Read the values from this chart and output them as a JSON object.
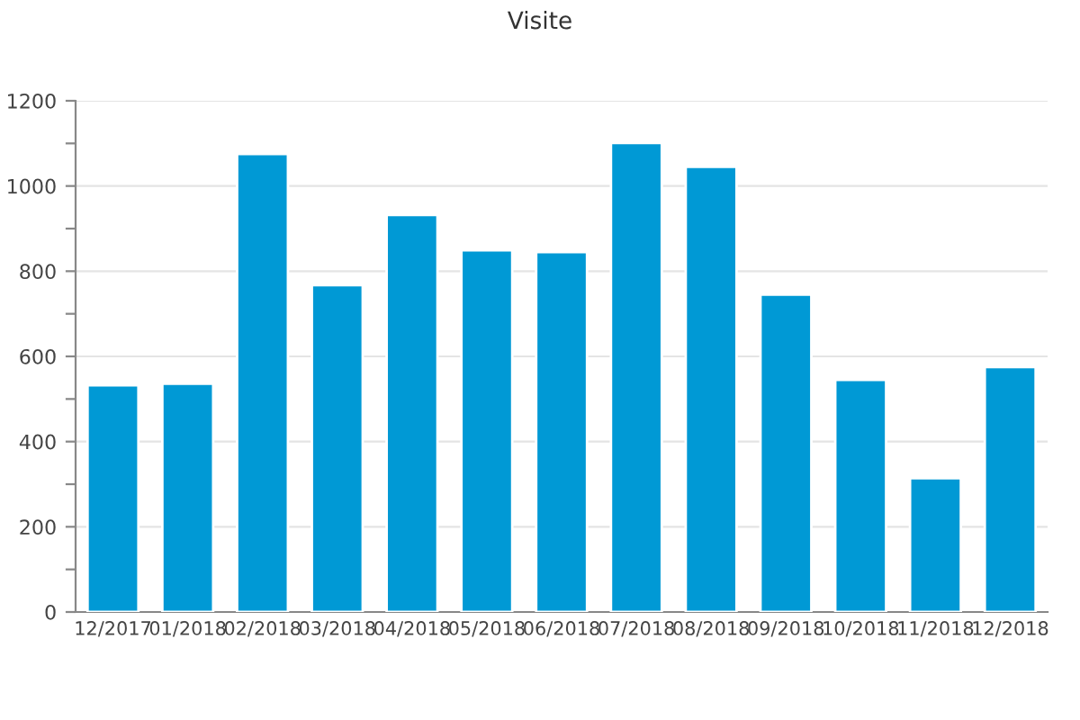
{
  "chart_data": {
    "type": "bar",
    "title": "Visite",
    "categories": [
      "12/2017",
      "01/2018",
      "02/2018",
      "03/2018",
      "04/2018",
      "05/2018",
      "06/2018",
      "07/2018",
      "08/2018",
      "09/2018",
      "10/2018",
      "11/2018",
      "12/2018"
    ],
    "values": [
      532,
      536,
      1075,
      767,
      932,
      849,
      845,
      1101,
      1045,
      745,
      545,
      314,
      575
    ],
    "color": "#0099d5",
    "ylim": [
      0,
      1200
    ],
    "yticks": [
      0,
      {
        "value": 100,
        "label": null
      },
      200,
      {
        "value": 300,
        "label": null
      },
      400,
      {
        "value": 500,
        "label": null
      },
      600,
      {
        "value": 700,
        "label": null
      },
      800,
      {
        "value": 900,
        "label": null
      },
      1000,
      {
        "value": 1100,
        "label": null
      },
      1200
    ],
    "grid": "y",
    "legend": false
  }
}
